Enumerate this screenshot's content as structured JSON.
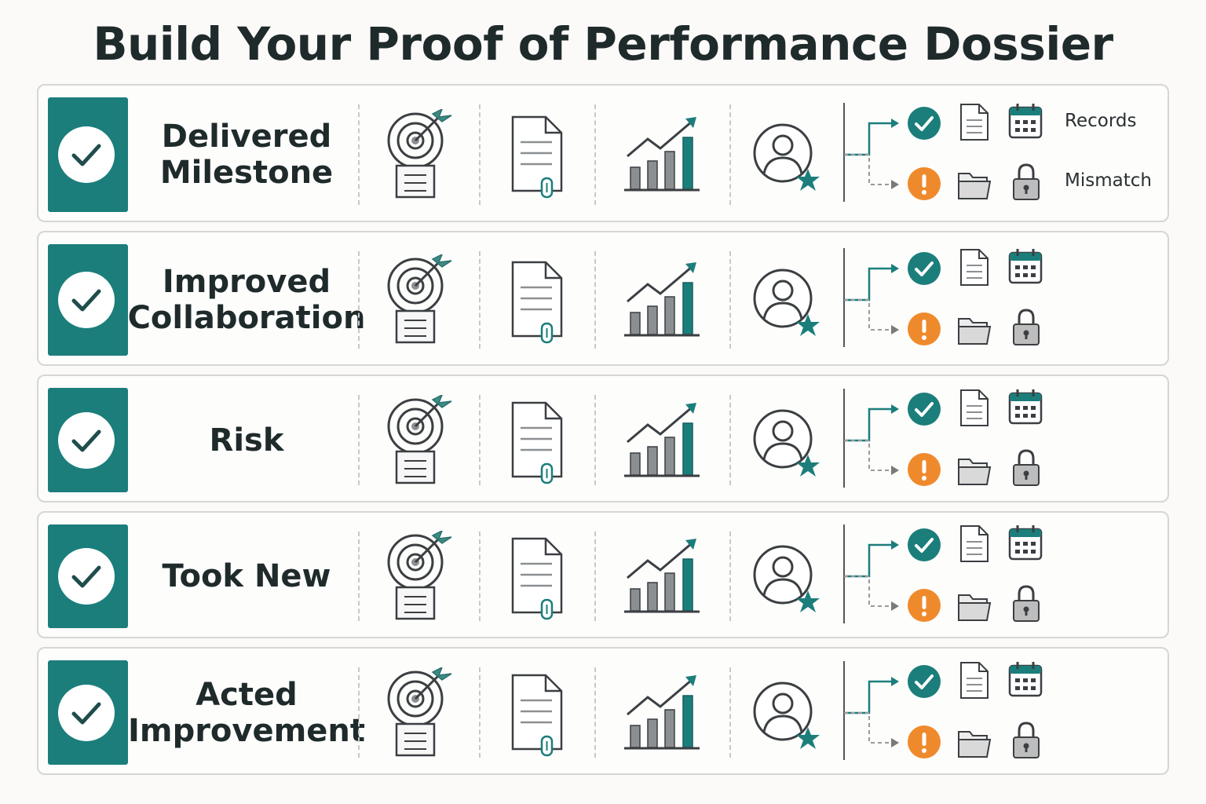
{
  "title": "Build Your Proof of Performance Dossier",
  "rows": [
    {
      "label_lines": [
        "Delivered",
        "Milestone"
      ]
    },
    {
      "label_lines": [
        "Improved",
        "Collaboration"
      ]
    },
    {
      "label_lines": [
        "Risk"
      ]
    },
    {
      "label_lines": [
        "Took New"
      ]
    },
    {
      "label_lines": [
        "Acted",
        "Improvement"
      ]
    }
  ],
  "legend": {
    "records": "Records",
    "mismatch": "Mismatch"
  },
  "columns": [
    "check-icon",
    "target-icon",
    "document-attachment-icon",
    "growth-chart-icon",
    "user-star-icon",
    "branch-arrow-icon"
  ],
  "status_icons": {
    "top": [
      "success-check-icon",
      "document-icon",
      "calendar-icon"
    ],
    "bottom": [
      "alert-icon",
      "folder-icon",
      "lock-icon"
    ]
  },
  "colors": {
    "teal": "#1b7e7b",
    "orange": "#ef8a2c",
    "gray": "#8c8f92",
    "ink": "#3b3f42"
  }
}
